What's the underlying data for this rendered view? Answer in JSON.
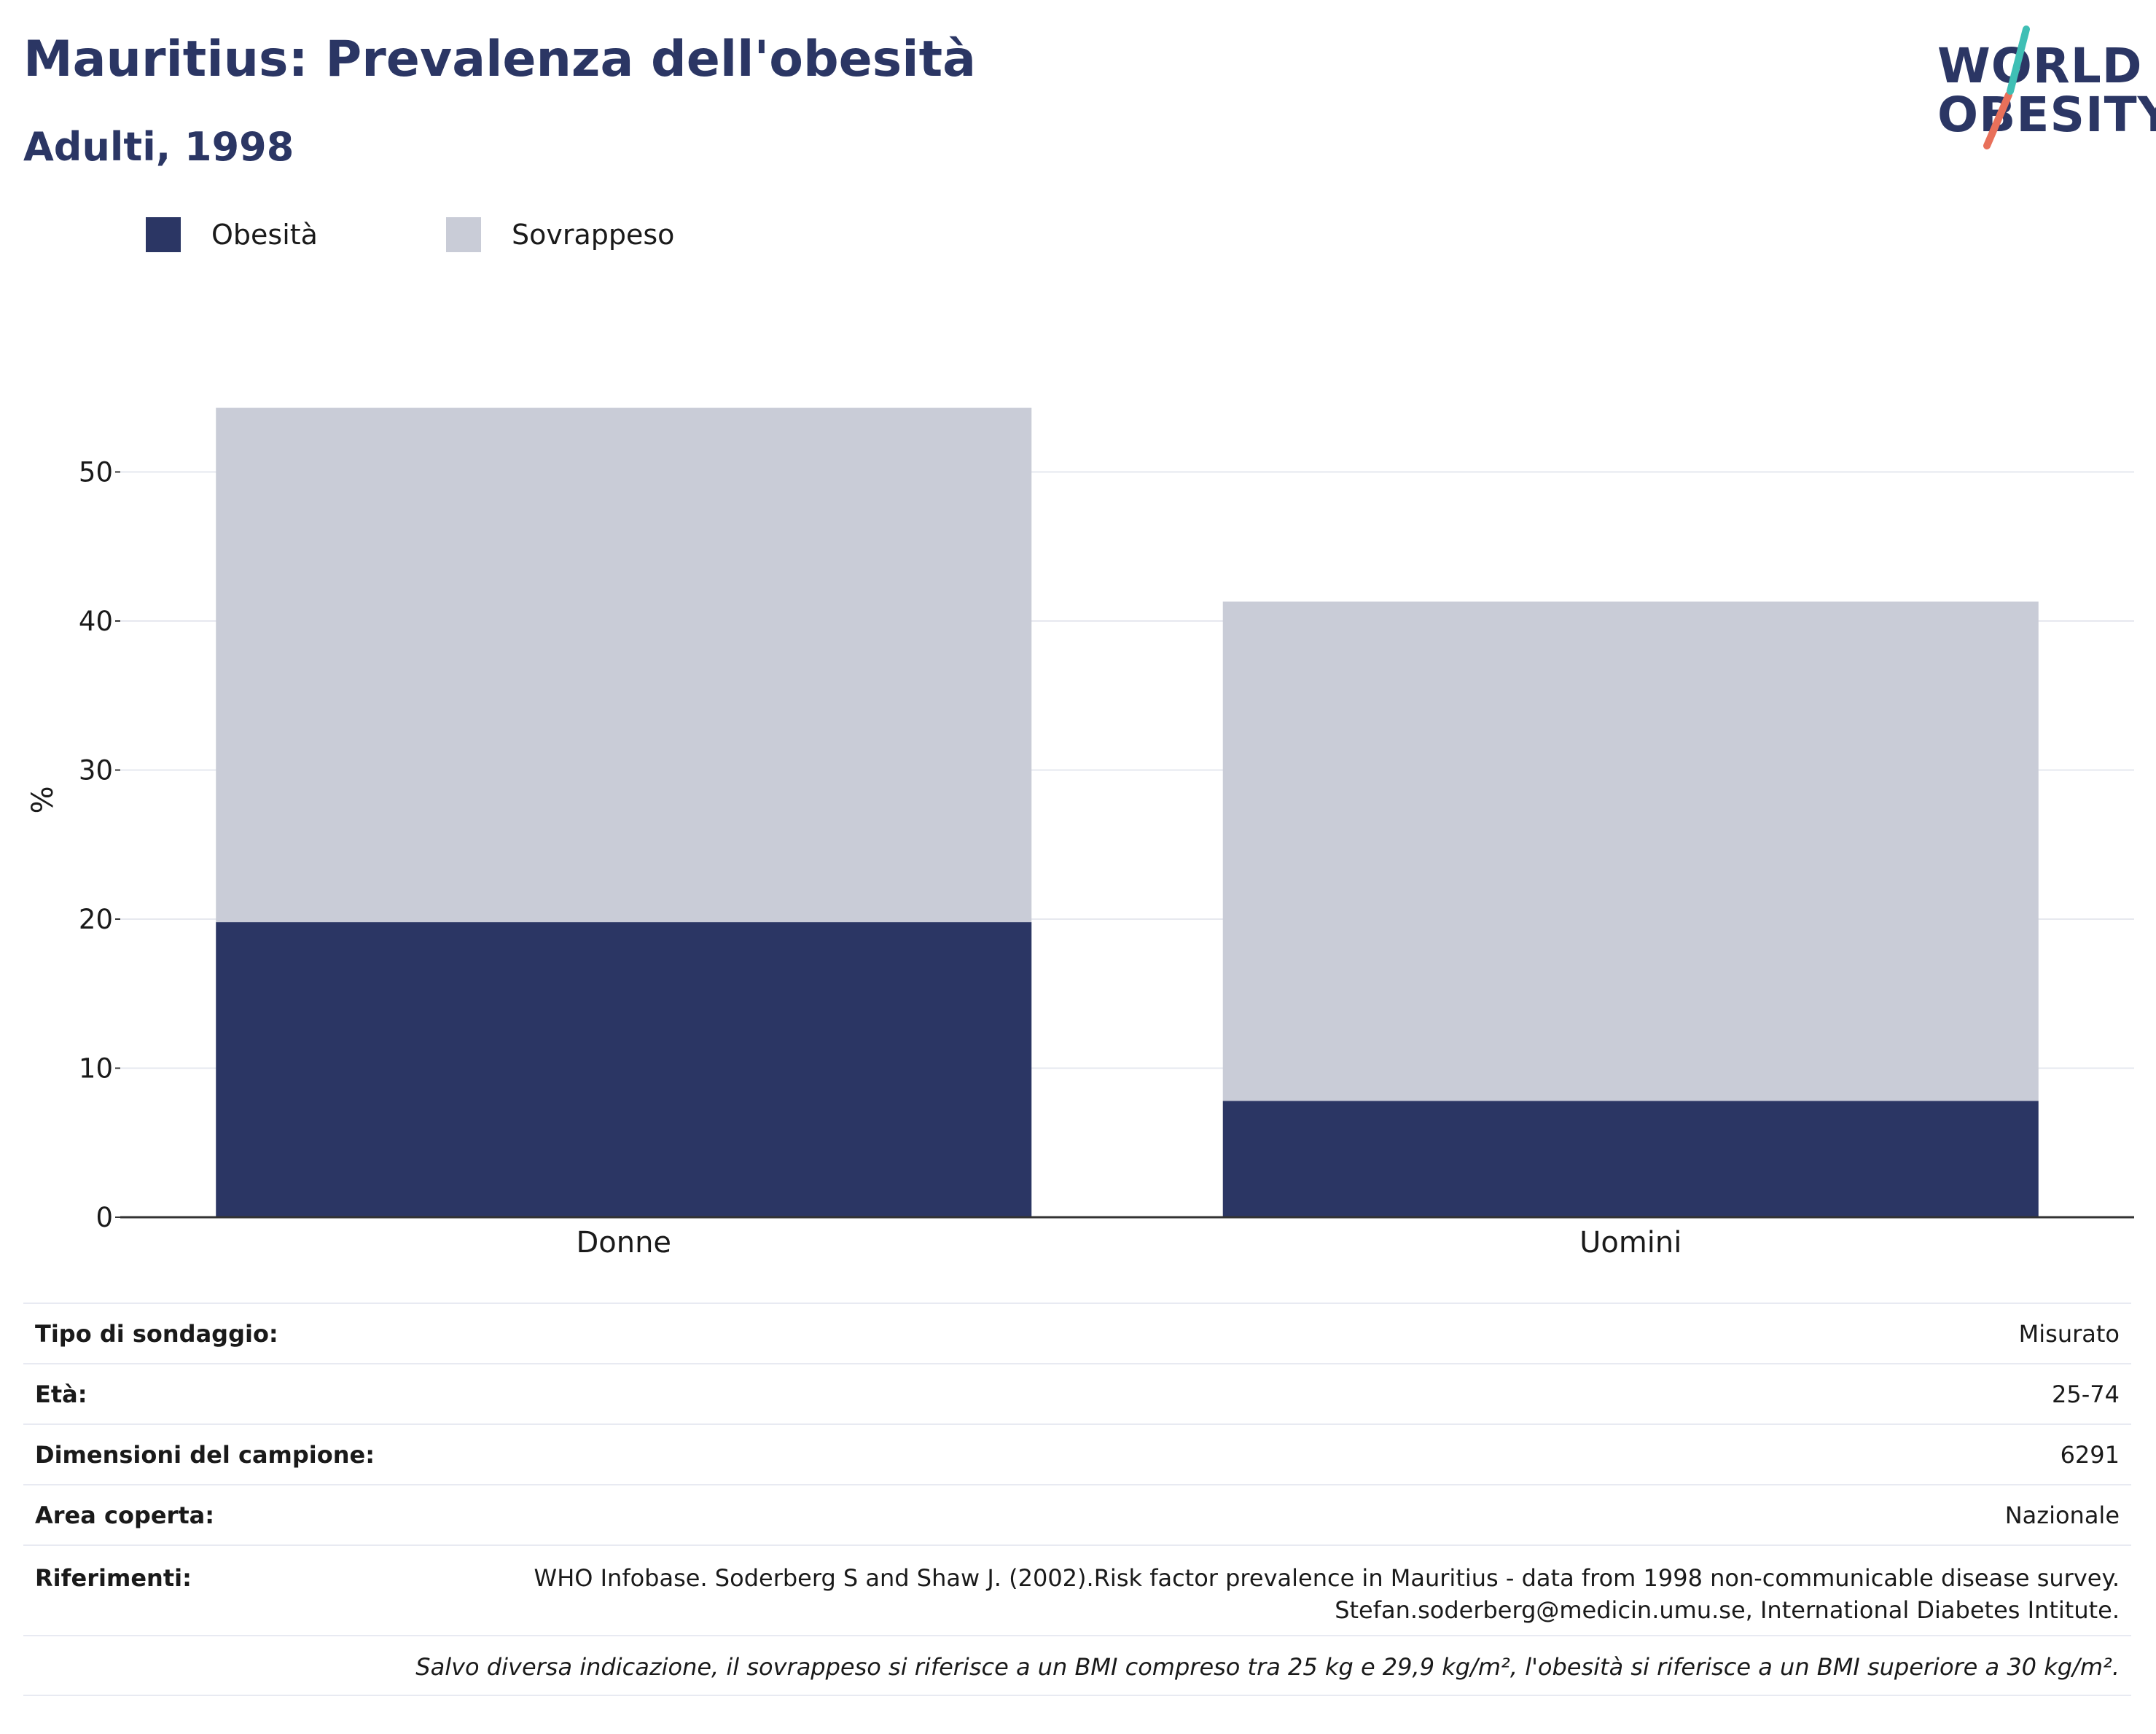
{
  "header": {
    "title": "Mauritius: Prevalenza dell'obesità",
    "subtitle": "Adulti, 1998"
  },
  "logo": {
    "line1": "WORLD",
    "line2": "OBESITY",
    "colors": {
      "navy": "#2b3664",
      "teal": "#3fbfb5",
      "coral": "#e8705a"
    }
  },
  "legend": [
    {
      "label": "Obesità",
      "color": "#2b3664"
    },
    {
      "label": "Sovrappeso",
      "color": "#c9ccd7"
    }
  ],
  "chart_data": {
    "type": "bar",
    "stacked": true,
    "categories": [
      "Donne",
      "Uomini"
    ],
    "series": [
      {
        "name": "Obesità",
        "color": "#2b3664",
        "values": [
          19.8,
          7.8
        ]
      },
      {
        "name": "Sovrappeso",
        "color": "#c9ccd7",
        "values": [
          34.5,
          33.5
        ]
      }
    ],
    "ylabel": "%",
    "xlabel": "",
    "ylim": [
      0,
      57
    ],
    "yticks": [
      0,
      10,
      20,
      30,
      40,
      50
    ],
    "grid": true,
    "legend_position": "top-left"
  },
  "info": {
    "rows": [
      {
        "key": "Tipo di sondaggio:",
        "value": "Misurato"
      },
      {
        "key": "Età:",
        "value": "25-74"
      },
      {
        "key": "Dimensioni del campione:",
        "value": "6291"
      },
      {
        "key": "Area coperta:",
        "value": "Nazionale"
      },
      {
        "key": "Riferimenti:",
        "value_lines": [
          "WHO Infobase. Soderberg S and Shaw J. (2002).Risk factor prevalence in Mauritius - data from 1998 non-communicable disease survey.",
          "Stefan.soderberg@medicin.umu.se, International Diabetes Intitute."
        ]
      }
    ],
    "note": "Salvo diversa indicazione, il sovrappeso si riferisce a un BMI compreso tra 25 kg e 29,9 kg/m², l'obesità si riferisce a un BMI superiore a 30 kg/m²."
  }
}
